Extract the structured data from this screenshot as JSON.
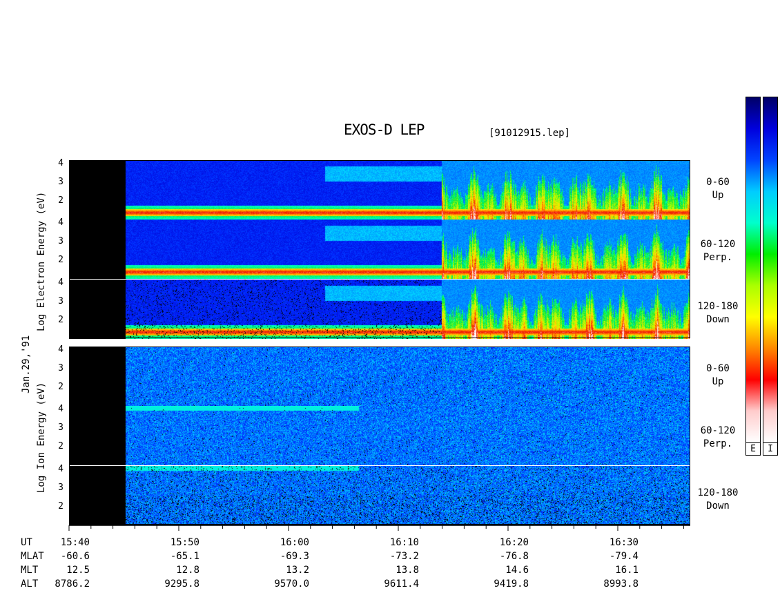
{
  "title": "EXOS-D LEP",
  "filename": "[91012915.lep]",
  "date_label": "Jan.29,'91",
  "electron_group": {
    "ylabel_lines": [
      "Log",
      "Electron",
      "Energy",
      "(eV)"
    ],
    "ylabel": "Log  Electron  Energy  (eV)",
    "panels": [
      {
        "pitch": "0-60",
        "dir": "Up"
      },
      {
        "pitch": "60-120",
        "dir": "Perp."
      },
      {
        "pitch": "120-180",
        "dir": "Down"
      }
    ]
  },
  "ion_group": {
    "ylabel": "Log  Ion  Energy  (eV)",
    "panels": [
      {
        "pitch": "0-60",
        "dir": "Up"
      },
      {
        "pitch": "60-120",
        "dir": "Perp."
      },
      {
        "pitch": "120-180",
        "dir": "Down"
      }
    ]
  },
  "colorbars": [
    {
      "label": "E",
      "colors": [
        "#000066",
        "#0000dd",
        "#0044ff",
        "#00ccff",
        "#00ffcc",
        "#00ee00",
        "#aaff00",
        "#ffff00",
        "#ff8800",
        "#ff0000",
        "#ffcccc",
        "#ffffff"
      ]
    },
    {
      "label": "I",
      "colors": [
        "#000066",
        "#0000dd",
        "#0044ff",
        "#00ccff",
        "#00ffcc",
        "#00ee00",
        "#aaff00",
        "#ffff00",
        "#ff8800",
        "#ff0000",
        "#ffcccc",
        "#ffffff"
      ]
    }
  ],
  "ephemeris": {
    "row_labels": [
      "UT",
      "MLAT",
      "MLT",
      "ALT"
    ],
    "columns": [
      {
        "UT": "15:40",
        "MLAT": "-60.6",
        "MLT": "12.5",
        "ALT": "8786.2"
      },
      {
        "UT": "15:50",
        "MLAT": "-65.1",
        "MLT": "12.8",
        "ALT": "9295.8"
      },
      {
        "UT": "16:00",
        "MLAT": "-69.3",
        "MLT": "13.2",
        "ALT": "9570.0"
      },
      {
        "UT": "16:10",
        "MLAT": "-73.2",
        "MLT": "13.8",
        "ALT": "9611.4"
      },
      {
        "UT": "16:20",
        "MLAT": "-76.8",
        "MLT": "14.6",
        "ALT": "9419.8"
      },
      {
        "UT": "16:30",
        "MLAT": "-79.4",
        "MLT": "16.1",
        "ALT": "8993.8"
      }
    ]
  },
  "chart_data": {
    "type": "heatmap",
    "title": "EXOS-D LEP",
    "xlabel": "UT",
    "ylabel": "Log Energy (eV)",
    "x_ticks": [
      "15:40",
      "15:50",
      "16:00",
      "16:10",
      "16:20",
      "16:30"
    ],
    "x_range": [
      "15:40",
      "16:39"
    ],
    "y_ticks": [
      2,
      3,
      4
    ],
    "ylim": [
      1,
      4.2
    ],
    "no_data_until": "15:45",
    "panels": [
      {
        "species": "Electron",
        "pitch": "0-60",
        "dir": "Up",
        "kind": "electron"
      },
      {
        "species": "Electron",
        "pitch": "60-120",
        "dir": "Perp.",
        "kind": "electron"
      },
      {
        "species": "Electron",
        "pitch": "120-180",
        "dir": "Down",
        "kind": "electron"
      },
      {
        "species": "Ion",
        "pitch": "0-60",
        "dir": "Up",
        "kind": "ion"
      },
      {
        "species": "Ion",
        "pitch": "60-120",
        "dir": "Perp.",
        "kind": "ion"
      },
      {
        "species": "Ion",
        "pitch": "120-180",
        "dir": "Down",
        "kind": "ion"
      }
    ]
  }
}
